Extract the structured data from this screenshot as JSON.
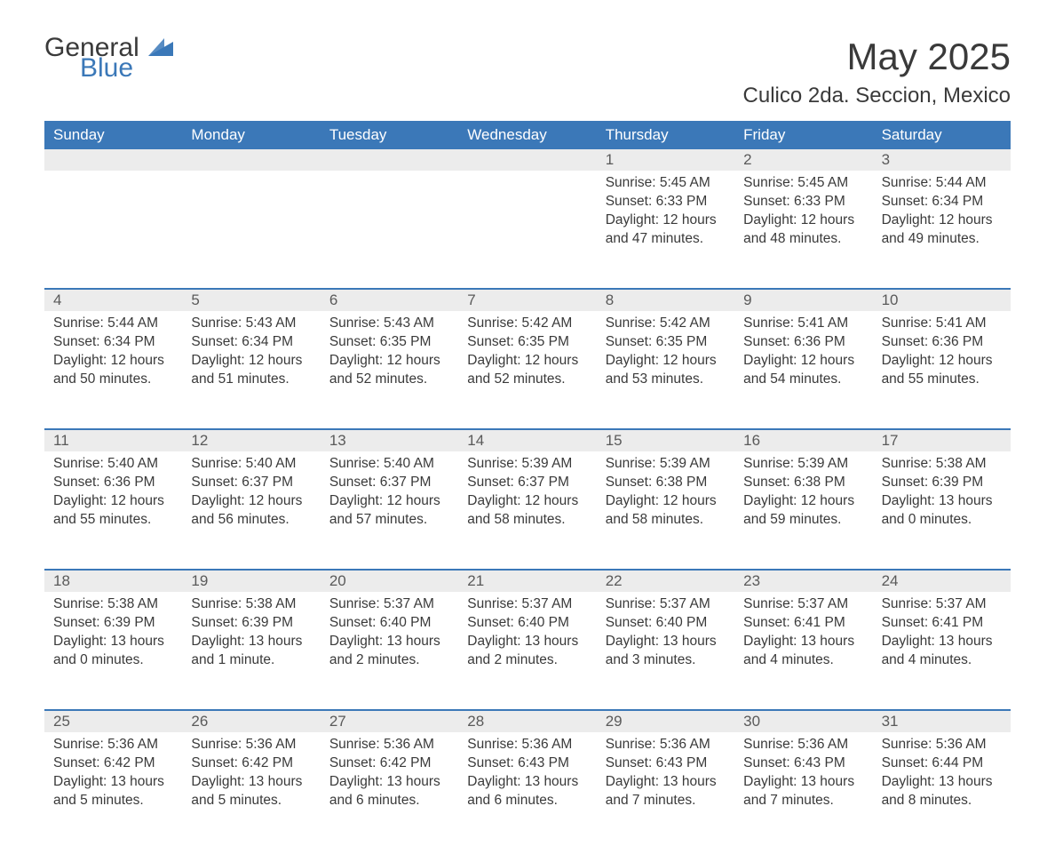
{
  "logo": {
    "text_general": "General",
    "text_blue": "Blue",
    "icon_color": "#3b78b8"
  },
  "title": "May 2025",
  "location": "Culico 2da. Seccion, Mexico",
  "header_bg": "#3b78b8",
  "header_fg": "#ffffff",
  "daynum_bg": "#ececec",
  "border_color": "#3b78b8",
  "text_color": "#3a3a3a",
  "day_headers": [
    "Sunday",
    "Monday",
    "Tuesday",
    "Wednesday",
    "Thursday",
    "Friday",
    "Saturday"
  ],
  "weeks": [
    {
      "nums": [
        "",
        "",
        "",
        "",
        "1",
        "2",
        "3"
      ],
      "cells": [
        null,
        null,
        null,
        null,
        {
          "sunrise": "Sunrise: 5:45 AM",
          "sunset": "Sunset: 6:33 PM",
          "day1": "Daylight: 12 hours",
          "day2": "and 47 minutes."
        },
        {
          "sunrise": "Sunrise: 5:45 AM",
          "sunset": "Sunset: 6:33 PM",
          "day1": "Daylight: 12 hours",
          "day2": "and 48 minutes."
        },
        {
          "sunrise": "Sunrise: 5:44 AM",
          "sunset": "Sunset: 6:34 PM",
          "day1": "Daylight: 12 hours",
          "day2": "and 49 minutes."
        }
      ]
    },
    {
      "nums": [
        "4",
        "5",
        "6",
        "7",
        "8",
        "9",
        "10"
      ],
      "cells": [
        {
          "sunrise": "Sunrise: 5:44 AM",
          "sunset": "Sunset: 6:34 PM",
          "day1": "Daylight: 12 hours",
          "day2": "and 50 minutes."
        },
        {
          "sunrise": "Sunrise: 5:43 AM",
          "sunset": "Sunset: 6:34 PM",
          "day1": "Daylight: 12 hours",
          "day2": "and 51 minutes."
        },
        {
          "sunrise": "Sunrise: 5:43 AM",
          "sunset": "Sunset: 6:35 PM",
          "day1": "Daylight: 12 hours",
          "day2": "and 52 minutes."
        },
        {
          "sunrise": "Sunrise: 5:42 AM",
          "sunset": "Sunset: 6:35 PM",
          "day1": "Daylight: 12 hours",
          "day2": "and 52 minutes."
        },
        {
          "sunrise": "Sunrise: 5:42 AM",
          "sunset": "Sunset: 6:35 PM",
          "day1": "Daylight: 12 hours",
          "day2": "and 53 minutes."
        },
        {
          "sunrise": "Sunrise: 5:41 AM",
          "sunset": "Sunset: 6:36 PM",
          "day1": "Daylight: 12 hours",
          "day2": "and 54 minutes."
        },
        {
          "sunrise": "Sunrise: 5:41 AM",
          "sunset": "Sunset: 6:36 PM",
          "day1": "Daylight: 12 hours",
          "day2": "and 55 minutes."
        }
      ]
    },
    {
      "nums": [
        "11",
        "12",
        "13",
        "14",
        "15",
        "16",
        "17"
      ],
      "cells": [
        {
          "sunrise": "Sunrise: 5:40 AM",
          "sunset": "Sunset: 6:36 PM",
          "day1": "Daylight: 12 hours",
          "day2": "and 55 minutes."
        },
        {
          "sunrise": "Sunrise: 5:40 AM",
          "sunset": "Sunset: 6:37 PM",
          "day1": "Daylight: 12 hours",
          "day2": "and 56 minutes."
        },
        {
          "sunrise": "Sunrise: 5:40 AM",
          "sunset": "Sunset: 6:37 PM",
          "day1": "Daylight: 12 hours",
          "day2": "and 57 minutes."
        },
        {
          "sunrise": "Sunrise: 5:39 AM",
          "sunset": "Sunset: 6:37 PM",
          "day1": "Daylight: 12 hours",
          "day2": "and 58 minutes."
        },
        {
          "sunrise": "Sunrise: 5:39 AM",
          "sunset": "Sunset: 6:38 PM",
          "day1": "Daylight: 12 hours",
          "day2": "and 58 minutes."
        },
        {
          "sunrise": "Sunrise: 5:39 AM",
          "sunset": "Sunset: 6:38 PM",
          "day1": "Daylight: 12 hours",
          "day2": "and 59 minutes."
        },
        {
          "sunrise": "Sunrise: 5:38 AM",
          "sunset": "Sunset: 6:39 PM",
          "day1": "Daylight: 13 hours",
          "day2": "and 0 minutes."
        }
      ]
    },
    {
      "nums": [
        "18",
        "19",
        "20",
        "21",
        "22",
        "23",
        "24"
      ],
      "cells": [
        {
          "sunrise": "Sunrise: 5:38 AM",
          "sunset": "Sunset: 6:39 PM",
          "day1": "Daylight: 13 hours",
          "day2": "and 0 minutes."
        },
        {
          "sunrise": "Sunrise: 5:38 AM",
          "sunset": "Sunset: 6:39 PM",
          "day1": "Daylight: 13 hours",
          "day2": "and 1 minute."
        },
        {
          "sunrise": "Sunrise: 5:37 AM",
          "sunset": "Sunset: 6:40 PM",
          "day1": "Daylight: 13 hours",
          "day2": "and 2 minutes."
        },
        {
          "sunrise": "Sunrise: 5:37 AM",
          "sunset": "Sunset: 6:40 PM",
          "day1": "Daylight: 13 hours",
          "day2": "and 2 minutes."
        },
        {
          "sunrise": "Sunrise: 5:37 AM",
          "sunset": "Sunset: 6:40 PM",
          "day1": "Daylight: 13 hours",
          "day2": "and 3 minutes."
        },
        {
          "sunrise": "Sunrise: 5:37 AM",
          "sunset": "Sunset: 6:41 PM",
          "day1": "Daylight: 13 hours",
          "day2": "and 4 minutes."
        },
        {
          "sunrise": "Sunrise: 5:37 AM",
          "sunset": "Sunset: 6:41 PM",
          "day1": "Daylight: 13 hours",
          "day2": "and 4 minutes."
        }
      ]
    },
    {
      "nums": [
        "25",
        "26",
        "27",
        "28",
        "29",
        "30",
        "31"
      ],
      "cells": [
        {
          "sunrise": "Sunrise: 5:36 AM",
          "sunset": "Sunset: 6:42 PM",
          "day1": "Daylight: 13 hours",
          "day2": "and 5 minutes."
        },
        {
          "sunrise": "Sunrise: 5:36 AM",
          "sunset": "Sunset: 6:42 PM",
          "day1": "Daylight: 13 hours",
          "day2": "and 5 minutes."
        },
        {
          "sunrise": "Sunrise: 5:36 AM",
          "sunset": "Sunset: 6:42 PM",
          "day1": "Daylight: 13 hours",
          "day2": "and 6 minutes."
        },
        {
          "sunrise": "Sunrise: 5:36 AM",
          "sunset": "Sunset: 6:43 PM",
          "day1": "Daylight: 13 hours",
          "day2": "and 6 minutes."
        },
        {
          "sunrise": "Sunrise: 5:36 AM",
          "sunset": "Sunset: 6:43 PM",
          "day1": "Daylight: 13 hours",
          "day2": "and 7 minutes."
        },
        {
          "sunrise": "Sunrise: 5:36 AM",
          "sunset": "Sunset: 6:43 PM",
          "day1": "Daylight: 13 hours",
          "day2": "and 7 minutes."
        },
        {
          "sunrise": "Sunrise: 5:36 AM",
          "sunset": "Sunset: 6:44 PM",
          "day1": "Daylight: 13 hours",
          "day2": "and 8 minutes."
        }
      ]
    }
  ]
}
